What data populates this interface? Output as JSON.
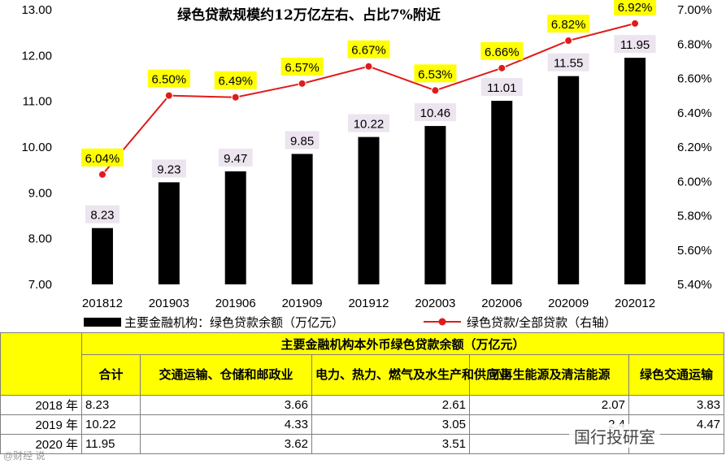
{
  "chart_data": {
    "type": "bar+line",
    "title": "绿色贷款规模约12万亿左右、占比7%附近",
    "categories": [
      "201812",
      "201903",
      "201906",
      "201909",
      "201912",
      "202003",
      "202006",
      "202009",
      "202012"
    ],
    "series": [
      {
        "name": "主要金融机构：绿色贷款余额（万亿元）",
        "type": "bar",
        "axis": "left",
        "values": [
          8.23,
          9.23,
          9.47,
          9.85,
          10.22,
          10.46,
          11.01,
          11.55,
          11.95
        ],
        "labels": [
          "8.23",
          "9.23",
          "9.47",
          "9.85",
          "10.22",
          "10.46",
          "11.01",
          "11.55",
          "11.95"
        ]
      },
      {
        "name": "绿色贷款/全部贷款（右轴）",
        "type": "line",
        "axis": "right",
        "values": [
          6.04,
          6.5,
          6.49,
          6.57,
          6.67,
          6.53,
          6.66,
          6.82,
          6.92
        ],
        "labels": [
          "6.04%",
          "6.50%",
          "6.49%",
          "6.57%",
          "6.67%",
          "6.53%",
          "6.66%",
          "6.82%",
          "6.92%"
        ]
      }
    ],
    "ylim_left": [
      7.0,
      13.0
    ],
    "left_ticks": [
      "7.00",
      "8.00",
      "9.00",
      "10.00",
      "11.00",
      "12.00",
      "13.00"
    ],
    "ylim_right": [
      5.4,
      7.0
    ],
    "right_ticks": [
      "5.40%",
      "5.60%",
      "5.80%",
      "6.00%",
      "6.20%",
      "6.40%",
      "6.60%",
      "6.80%",
      "7.00%"
    ],
    "legend_position": "bottom",
    "colors": {
      "bar": "#000000",
      "line": "#e01b1b",
      "line_label_bg": "#ffff00",
      "bar_label_bg": "#ece4ef"
    }
  },
  "table": {
    "title": "主要金融机构本外币绿色贷款余额（万亿元）",
    "headers": [
      "合计",
      "交通运输、仓储和邮政业",
      "电力、热力、燃气及水生产和供应业",
      "可再生能源及清洁能源",
      "绿色交通运输"
    ],
    "rows": [
      {
        "year": "2018 年",
        "cells": [
          "8.23",
          "3.66",
          "2.61",
          "2.07",
          "3.83"
        ]
      },
      {
        "year": "2019 年",
        "cells": [
          "10.22",
          "4.33",
          "3.05",
          "2.4",
          "4.47"
        ]
      },
      {
        "year": "2020 年",
        "cells": [
          "11.95",
          "3.62",
          "3.51",
          "",
          ""
        ]
      }
    ]
  },
  "watermark": "国行投研室",
  "watermark_left": "@财经 说"
}
